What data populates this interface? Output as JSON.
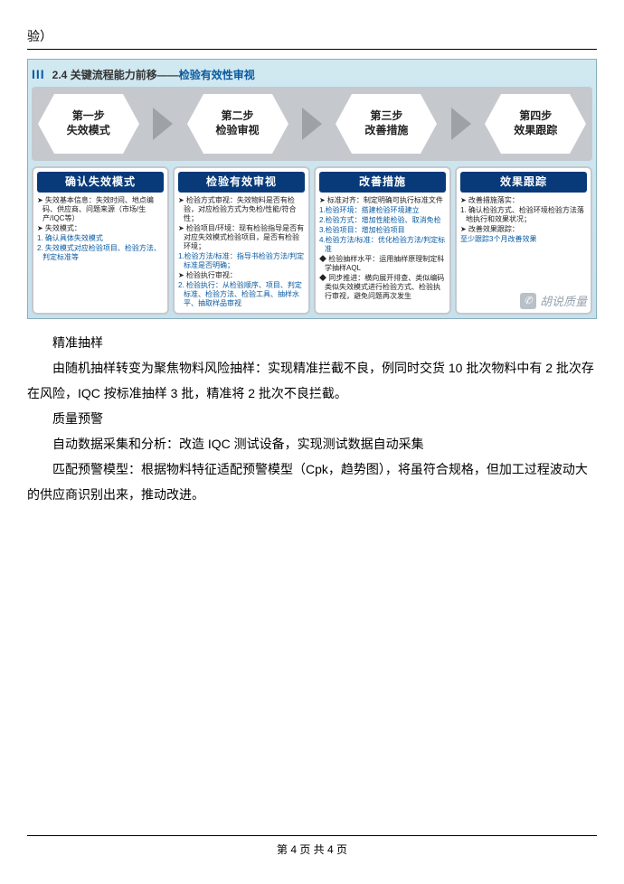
{
  "pre_text": "验）",
  "diagram": {
    "header": {
      "bars": "III",
      "title_black": "2.4 关键流程能力前移——",
      "title_blue": "检验有效性审视"
    },
    "steps": [
      {
        "line1": "第一步",
        "line2": "失效模式"
      },
      {
        "line1": "第二步",
        "line2": "检验审视"
      },
      {
        "line1": "第三步",
        "line2": "改善措施"
      },
      {
        "line1": "第四步",
        "line2": "效果跟踪"
      }
    ],
    "cards": [
      {
        "title": "确认失效模式",
        "lines": [
          {
            "t": "➤ 失效基本信息：失效时间、地点编码、供应商、问题来源（市场/生产/IQC等）",
            "c": ""
          },
          {
            "t": "➤ 失效模式：",
            "c": ""
          },
          {
            "t": "1. 确认具体失效模式",
            "c": "blue"
          },
          {
            "t": "2. 失效模式对应检验项目、检验方法、判定标准等",
            "c": "blue"
          }
        ]
      },
      {
        "title": "检验有效审视",
        "lines": [
          {
            "t": "➤ 检验方式审视：失效物料是否有检验，对应检验方式为免检/性能/符合性；",
            "c": ""
          },
          {
            "t": "➤ 检验项目/环境：现有检验指导是否有对应失效模式检验项目，是否有检验环境；",
            "c": ""
          },
          {
            "t": "1.检验方法/标准：指导书检验方法/判定标准是否明确；",
            "c": "blue"
          },
          {
            "t": "➤ 检验执行审视：",
            "c": ""
          },
          {
            "t": "2. 检验执行：从检验顺序、项目、判定标准、检验方法、检验工具、抽样水平、抽取样品审视",
            "c": "blue"
          }
        ]
      },
      {
        "title": "改善措施",
        "lines": [
          {
            "t": "➤ 标准对齐：制定明确可执行标准文件",
            "c": ""
          },
          {
            "t": "1.检验环境：搭建检验环境建立",
            "c": "blue"
          },
          {
            "t": "2.检验方式：增加性能检验、取消免检",
            "c": "blue"
          },
          {
            "t": "3.检验项目：增加检验项目",
            "c": "blue"
          },
          {
            "t": "4.检验方法/标准：优化检验方法/判定标准",
            "c": "blue"
          },
          {
            "t": "◆ 检验抽样水平：运用抽样原理制定科学抽样AQL",
            "c": ""
          },
          {
            "t": "◆ 同步推进：横向展开排查、类似编码类似失效模式进行检验方式、检验执行审视，避免问题再次发生",
            "c": ""
          }
        ]
      },
      {
        "title": "效果跟踪",
        "lines": [
          {
            "t": "➤ 改善措施落实：",
            "c": ""
          },
          {
            "t": "1. 确认检验方式、检验环境检验方法落地执行和效果状况；",
            "c": ""
          },
          {
            "t": "",
            "c": ""
          },
          {
            "t": "➤ 改善效果跟踪：",
            "c": ""
          },
          {
            "t": "至少跟踪3个月改善效果",
            "c": "blue"
          }
        ]
      }
    ],
    "watermark": {
      "icon": "✆",
      "text": "胡说质量"
    },
    "colors": {
      "bg_gradient_top": "#d0e8f0",
      "bg_gradient_bottom": "#c8e0ec",
      "arrow_bg": "#c5c8cd",
      "hex_border": "#7cbf2e",
      "card_title_bg": "#083a7a",
      "blue_text": "#0a5aa0"
    }
  },
  "body": [
    "精准抽样",
    "由随机抽样转变为聚焦物料风险抽样：实现精准拦截不良，例同时交货 10 批次物料中有 2 批次存在风险，IQC 按标准抽样 3 批，精准将 2 批次不良拦截。",
    "质量预警",
    "自动数据采集和分析：改造 IQC 测试设备，实现测试数据自动采集",
    "匹配预警模型：根据物料特征适配预警模型（Cpk，趋势图），将虽符合规格，但加工过程波动大的供应商识别出来，推动改进。"
  ],
  "footer": "第 4 页 共 4 页"
}
